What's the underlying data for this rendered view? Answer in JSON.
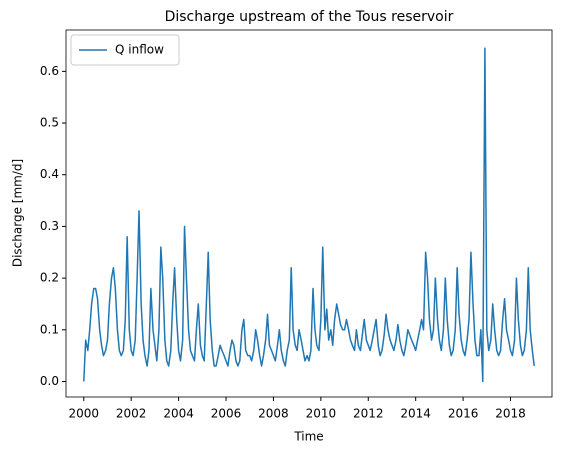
{
  "chart_data": {
    "type": "line",
    "title": "Discharge upstream of the Tous reservoir",
    "xlabel": "Time",
    "ylabel": "Discharge [mm/d]",
    "legend": "upper left",
    "xlim": [
      1999.25,
      2019.75
    ],
    "ylim": [
      -0.03,
      0.68
    ],
    "xticks": [
      2000,
      2002,
      2004,
      2006,
      2008,
      2010,
      2012,
      2014,
      2016,
      2018
    ],
    "yticks": [
      {
        "value": 0,
        "label": "0.0"
      },
      0.1,
      0.2,
      0.3,
      0.4,
      0.5,
      0.6
    ],
    "x": [
      2000.0,
      2000.08,
      2000.17,
      2000.25,
      2000.33,
      2000.42,
      2000.5,
      2000.58,
      2000.67,
      2000.75,
      2000.83,
      2000.92,
      2001.0,
      2001.08,
      2001.17,
      2001.25,
      2001.33,
      2001.42,
      2001.5,
      2001.58,
      2001.67,
      2001.75,
      2001.83,
      2001.92,
      2002.0,
      2002.08,
      2002.17,
      2002.25,
      2002.33,
      2002.42,
      2002.5,
      2002.58,
      2002.67,
      2002.75,
      2002.83,
      2002.92,
      2003.0,
      2003.08,
      2003.17,
      2003.25,
      2003.33,
      2003.42,
      2003.5,
      2003.58,
      2003.67,
      2003.75,
      2003.83,
      2003.92,
      2004.0,
      2004.08,
      2004.17,
      2004.25,
      2004.33,
      2004.42,
      2004.5,
      2004.58,
      2004.67,
      2004.75,
      2004.83,
      2004.92,
      2005.0,
      2005.08,
      2005.17,
      2005.25,
      2005.33,
      2005.42,
      2005.5,
      2005.58,
      2005.67,
      2005.75,
      2005.83,
      2005.92,
      2006.0,
      2006.08,
      2006.17,
      2006.25,
      2006.33,
      2006.42,
      2006.5,
      2006.58,
      2006.67,
      2006.75,
      2006.83,
      2006.92,
      2007.0,
      2007.08,
      2007.17,
      2007.25,
      2007.33,
      2007.42,
      2007.5,
      2007.58,
      2007.67,
      2007.75,
      2007.83,
      2007.92,
      2008.0,
      2008.08,
      2008.17,
      2008.25,
      2008.33,
      2008.42,
      2008.5,
      2008.58,
      2008.67,
      2008.75,
      2008.83,
      2008.92,
      2009.0,
      2009.08,
      2009.17,
      2009.25,
      2009.33,
      2009.42,
      2009.5,
      2009.58,
      2009.67,
      2009.75,
      2009.83,
      2009.92,
      2010.0,
      2010.08,
      2010.17,
      2010.25,
      2010.33,
      2010.42,
      2010.5,
      2010.58,
      2010.67,
      2010.75,
      2010.83,
      2010.92,
      2011.0,
      2011.08,
      2011.17,
      2011.25,
      2011.33,
      2011.42,
      2011.5,
      2011.58,
      2011.67,
      2011.75,
      2011.83,
      2011.92,
      2012.0,
      2012.08,
      2012.17,
      2012.25,
      2012.33,
      2012.42,
      2012.5,
      2012.58,
      2012.67,
      2012.75,
      2012.83,
      2012.92,
      2013.0,
      2013.08,
      2013.17,
      2013.25,
      2013.33,
      2013.42,
      2013.5,
      2013.58,
      2013.67,
      2013.75,
      2013.83,
      2013.92,
      2014.0,
      2014.08,
      2014.17,
      2014.25,
      2014.33,
      2014.42,
      2014.5,
      2014.58,
      2014.67,
      2014.75,
      2014.83,
      2014.92,
      2015.0,
      2015.08,
      2015.17,
      2015.25,
      2015.33,
      2015.42,
      2015.5,
      2015.58,
      2015.67,
      2015.75,
      2015.83,
      2015.92,
      2016.0,
      2016.08,
      2016.17,
      2016.25,
      2016.33,
      2016.42,
      2016.5,
      2016.58,
      2016.67,
      2016.75,
      2016.83,
      2016.92,
      2017.0,
      2017.08,
      2017.17,
      2017.25,
      2017.33,
      2017.42,
      2017.5,
      2017.58,
      2017.67,
      2017.75,
      2017.83,
      2017.92,
      2018.0,
      2018.08,
      2018.17,
      2018.25,
      2018.33,
      2018.42,
      2018.5,
      2018.58,
      2018.67,
      2018.75,
      2018.83,
      2018.92,
      2019.0
    ],
    "series": [
      {
        "name": "Q inflow",
        "color": "#1f77b4",
        "values": [
          0.0,
          0.08,
          0.06,
          0.1,
          0.15,
          0.18,
          0.18,
          0.16,
          0.1,
          0.07,
          0.05,
          0.06,
          0.08,
          0.15,
          0.2,
          0.22,
          0.18,
          0.1,
          0.06,
          0.05,
          0.06,
          0.12,
          0.28,
          0.1,
          0.06,
          0.05,
          0.08,
          0.2,
          0.33,
          0.15,
          0.08,
          0.05,
          0.03,
          0.06,
          0.18,
          0.1,
          0.07,
          0.04,
          0.1,
          0.26,
          0.2,
          0.08,
          0.04,
          0.03,
          0.06,
          0.15,
          0.22,
          0.12,
          0.06,
          0.04,
          0.08,
          0.3,
          0.2,
          0.1,
          0.06,
          0.05,
          0.04,
          0.1,
          0.15,
          0.07,
          0.05,
          0.04,
          0.15,
          0.25,
          0.12,
          0.06,
          0.03,
          0.03,
          0.05,
          0.07,
          0.06,
          0.05,
          0.04,
          0.03,
          0.06,
          0.08,
          0.07,
          0.04,
          0.03,
          0.04,
          0.1,
          0.12,
          0.06,
          0.05,
          0.05,
          0.04,
          0.06,
          0.1,
          0.08,
          0.05,
          0.03,
          0.05,
          0.08,
          0.13,
          0.07,
          0.06,
          0.05,
          0.04,
          0.07,
          0.1,
          0.06,
          0.04,
          0.03,
          0.06,
          0.08,
          0.22,
          0.1,
          0.07,
          0.06,
          0.1,
          0.08,
          0.06,
          0.04,
          0.05,
          0.04,
          0.06,
          0.18,
          0.1,
          0.07,
          0.06,
          0.12,
          0.26,
          0.1,
          0.14,
          0.08,
          0.1,
          0.07,
          0.12,
          0.15,
          0.13,
          0.11,
          0.1,
          0.1,
          0.12,
          0.1,
          0.08,
          0.07,
          0.06,
          0.1,
          0.07,
          0.06,
          0.09,
          0.12,
          0.08,
          0.07,
          0.06,
          0.08,
          0.1,
          0.12,
          0.07,
          0.05,
          0.06,
          0.09,
          0.13,
          0.1,
          0.08,
          0.07,
          0.06,
          0.08,
          0.11,
          0.08,
          0.06,
          0.05,
          0.07,
          0.1,
          0.09,
          0.08,
          0.07,
          0.06,
          0.08,
          0.1,
          0.12,
          0.1,
          0.25,
          0.2,
          0.12,
          0.08,
          0.1,
          0.2,
          0.12,
          0.08,
          0.06,
          0.1,
          0.2,
          0.12,
          0.07,
          0.05,
          0.06,
          0.1,
          0.22,
          0.13,
          0.08,
          0.06,
          0.05,
          0.08,
          0.12,
          0.25,
          0.15,
          0.08,
          0.05,
          0.05,
          0.1,
          0.0,
          0.645,
          0.1,
          0.06,
          0.08,
          0.15,
          0.1,
          0.06,
          0.05,
          0.06,
          0.12,
          0.16,
          0.1,
          0.08,
          0.06,
          0.05,
          0.08,
          0.2,
          0.12,
          0.07,
          0.05,
          0.06,
          0.1,
          0.22,
          0.1,
          0.06,
          0.03
        ]
      }
    ]
  }
}
